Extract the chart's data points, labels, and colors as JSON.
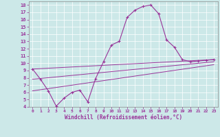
{
  "xlabel": "Windchill (Refroidissement éolien,°C)",
  "bg_color": "#cce8e8",
  "line_color": "#993399",
  "xlim": [
    -0.5,
    23.5
  ],
  "ylim": [
    4,
    18.5
  ],
  "yticks": [
    4,
    5,
    6,
    7,
    8,
    9,
    10,
    11,
    12,
    13,
    14,
    15,
    16,
    17,
    18
  ],
  "xticks": [
    0,
    1,
    2,
    3,
    4,
    5,
    6,
    7,
    8,
    9,
    10,
    11,
    12,
    13,
    14,
    15,
    16,
    17,
    18,
    19,
    20,
    21,
    22,
    23
  ],
  "line1_x": [
    0,
    1,
    2,
    3,
    4,
    5,
    6,
    7,
    8,
    9,
    10,
    11,
    12,
    13,
    14,
    15,
    16,
    17,
    18,
    19,
    20,
    21,
    22,
    23
  ],
  "line1_y": [
    9.2,
    7.8,
    6.2,
    4.1,
    5.2,
    6.0,
    6.3,
    4.7,
    7.9,
    10.2,
    12.5,
    13.0,
    16.3,
    17.3,
    17.8,
    18.0,
    16.8,
    13.2,
    12.2,
    10.5,
    10.2,
    10.3,
    10.4,
    10.5
  ],
  "line2_x": [
    0,
    23
  ],
  "line2_y": [
    9.2,
    10.5
  ],
  "line3_x": [
    0,
    23
  ],
  "line3_y": [
    7.8,
    10.2
  ],
  "line4_x": [
    0,
    23
  ],
  "line4_y": [
    6.2,
    9.8
  ],
  "grid_color": "#aacccc",
  "spine_color": "#888888"
}
